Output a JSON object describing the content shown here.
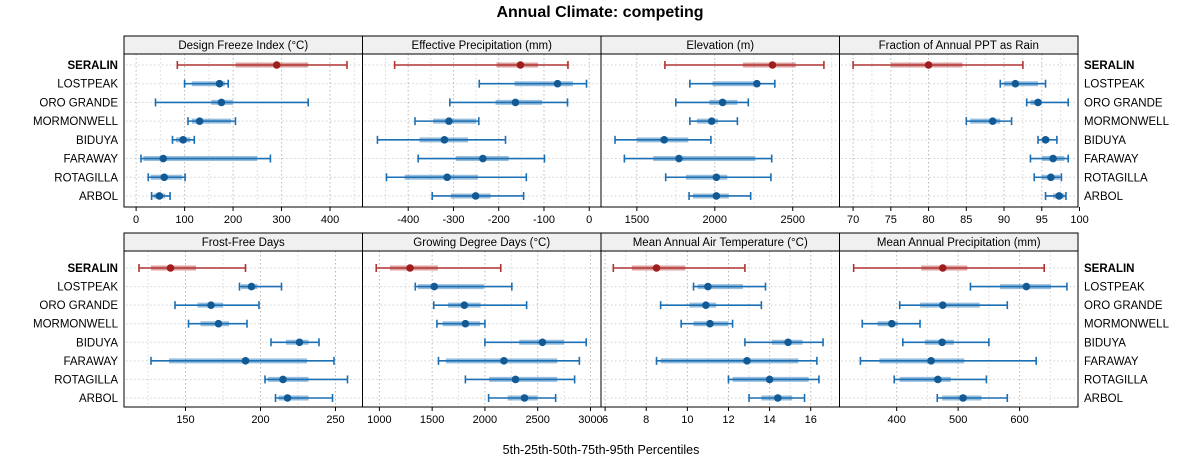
{
  "title": "Annual Climate: competing",
  "caption": "5th-25th-50th-75th-95th Percentiles",
  "highlight_site": "SERALIN",
  "sites": [
    "SERALIN",
    "LOSTPEAK",
    "ORO GRANDE",
    "MORMONWELL",
    "BIDUYA",
    "FARAWAY",
    "ROTAGILLA",
    "ARBOL"
  ],
  "colors": {
    "highlight": "#B23333",
    "highlight_point": "#A01D1D",
    "normal": "#1B6FB4",
    "normal_point": "#125A96",
    "strip_bg": "#F0F0F0",
    "grid_major": "#B9B9B9",
    "grid_minor": "#DADADA",
    "grid_row": "#CFCFCF",
    "border": "#000000"
  },
  "chart_data": [
    {
      "type": "dot-whisker",
      "title": "Design Freeze Index (°C)",
      "percentile_labels": [
        "5th",
        "25th",
        "50th",
        "75th",
        "95th"
      ],
      "xlim": [
        -25,
        467
      ],
      "ticks": [
        0,
        100,
        200,
        300,
        400
      ],
      "series": [
        {
          "name": "SERALIN",
          "values": [
            85,
            205,
            290,
            355,
            435
          ]
        },
        {
          "name": "LOSTPEAK",
          "values": [
            100,
            115,
            172,
            183,
            190
          ]
        },
        {
          "name": "ORO GRANDE",
          "values": [
            40,
            155,
            176,
            200,
            355
          ]
        },
        {
          "name": "MORMONWELL",
          "values": [
            107,
            115,
            131,
            196,
            205
          ]
        },
        {
          "name": "BIDUYA",
          "values": [
            75,
            82,
            97,
            112,
            120
          ]
        },
        {
          "name": "FARAWAY",
          "values": [
            10,
            15,
            56,
            250,
            277
          ]
        },
        {
          "name": "ROTAGILLA",
          "values": [
            25,
            30,
            58,
            95,
            101
          ]
        },
        {
          "name": "ARBOL",
          "values": [
            32,
            36,
            48,
            60,
            70
          ]
        }
      ]
    },
    {
      "type": "dot-whisker",
      "title": "Effective Precipitation (mm)",
      "percentile_labels": [
        "5th",
        "25th",
        "50th",
        "75th",
        "95th"
      ],
      "xlim": [
        -501,
        26
      ],
      "ticks": [
        -400,
        -300,
        -200,
        -100,
        0
      ],
      "series": [
        {
          "name": "SERALIN",
          "values": [
            -430,
            -205,
            -152,
            -113,
            -47
          ]
        },
        {
          "name": "LOSTPEAK",
          "values": [
            -243,
            -165,
            -70,
            -36,
            -6
          ]
        },
        {
          "name": "ORO GRANDE",
          "values": [
            -308,
            -207,
            -163,
            -104,
            -48
          ]
        },
        {
          "name": "MORMONWELL",
          "values": [
            -385,
            -345,
            -310,
            -250,
            -244
          ]
        },
        {
          "name": "BIDUYA",
          "values": [
            -468,
            -375,
            -320,
            -268,
            -185
          ]
        },
        {
          "name": "FARAWAY",
          "values": [
            -378,
            -295,
            -235,
            -178,
            -99
          ]
        },
        {
          "name": "ROTAGILLA",
          "values": [
            -448,
            -408,
            -314,
            -246,
            -139
          ]
        },
        {
          "name": "ARBOL",
          "values": [
            -347,
            -306,
            -251,
            -218,
            -145
          ]
        }
      ]
    },
    {
      "type": "dot-whisker",
      "title": "Elevation (m)",
      "percentile_labels": [
        "5th",
        "25th",
        "50th",
        "75th",
        "95th"
      ],
      "xlim": [
        1270,
        2800
      ],
      "ticks": [
        1500,
        2000,
        2500
      ],
      "series": [
        {
          "name": "SERALIN",
          "values": [
            1680,
            2180,
            2370,
            2520,
            2700
          ]
        },
        {
          "name": "LOSTPEAK",
          "values": [
            1840,
            1985,
            2270,
            2290,
            2385
          ]
        },
        {
          "name": "ORO GRANDE",
          "values": [
            1750,
            1965,
            2050,
            2145,
            2215
          ]
        },
        {
          "name": "MORMONWELL",
          "values": [
            1840,
            1885,
            1980,
            2020,
            2145
          ]
        },
        {
          "name": "BIDUYA",
          "values": [
            1360,
            1500,
            1675,
            1830,
            1975
          ]
        },
        {
          "name": "FARAWAY",
          "values": [
            1420,
            1605,
            1770,
            2260,
            2365
          ]
        },
        {
          "name": "ROTAGILLA",
          "values": [
            1685,
            1815,
            2010,
            2080,
            2360
          ]
        },
        {
          "name": "ARBOL",
          "values": [
            1835,
            1860,
            2010,
            2090,
            2230
          ]
        }
      ]
    },
    {
      "type": "dot-whisker",
      "title": "Fraction of Annual PPT as Rain",
      "percentile_labels": [
        "5th",
        "25th",
        "50th",
        "75th",
        "95th"
      ],
      "xlim": [
        68.2,
        99.8
      ],
      "ticks": [
        70,
        75,
        80,
        85,
        90,
        95,
        100
      ],
      "series": [
        {
          "name": "SERALIN",
          "values": [
            70,
            75,
            80,
            84.5,
            92.5
          ]
        },
        {
          "name": "LOSTPEAK",
          "values": [
            89.5,
            90,
            91.5,
            94.5,
            95.5
          ]
        },
        {
          "name": "ORO GRANDE",
          "values": [
            93,
            93.5,
            94.5,
            95,
            98.5
          ]
        },
        {
          "name": "MORMONWELL",
          "values": [
            85,
            85.5,
            88.5,
            89.5,
            91
          ]
        },
        {
          "name": "BIDUYA",
          "values": [
            94.5,
            95,
            95.5,
            96,
            97
          ]
        },
        {
          "name": "FARAWAY",
          "values": [
            93.5,
            95,
            96.5,
            98,
            98.5
          ]
        },
        {
          "name": "ROTAGILLA",
          "values": [
            94,
            95,
            96.2,
            97.4,
            97.6
          ]
        },
        {
          "name": "ARBOL",
          "values": [
            95.5,
            96.5,
            97.3,
            98,
            98.2
          ]
        }
      ]
    },
    {
      "type": "dot-whisker",
      "title": "Frost-Free Days",
      "percentile_labels": [
        "5th",
        "25th",
        "50th",
        "75th",
        "95th"
      ],
      "xlim": [
        109,
        268
      ],
      "ticks": [
        150,
        200,
        250
      ],
      "series": [
        {
          "name": "SERALIN",
          "values": [
            119,
            127,
            140,
            157,
            190
          ]
        },
        {
          "name": "LOSTPEAK",
          "values": [
            186,
            187,
            194,
            198,
            214
          ]
        },
        {
          "name": "ORO GRANDE",
          "values": [
            143,
            158,
            167,
            175,
            199
          ]
        },
        {
          "name": "MORMONWELL",
          "values": [
            152,
            160,
            172,
            179,
            191
          ]
        },
        {
          "name": "BIDUYA",
          "values": [
            207,
            217,
            226,
            232,
            239
          ]
        },
        {
          "name": "FARAWAY",
          "values": [
            127,
            139,
            190,
            231,
            249
          ]
        },
        {
          "name": "ROTAGILLA",
          "values": [
            203,
            205,
            215,
            232,
            258
          ]
        },
        {
          "name": "ARBOL",
          "values": [
            210,
            212,
            218,
            232,
            248
          ]
        }
      ]
    },
    {
      "type": "dot-whisker",
      "title": "Growing Degree Days (°C)",
      "percentile_labels": [
        "5th",
        "25th",
        "50th",
        "75th",
        "95th"
      ],
      "xlim": [
        840,
        3100
      ],
      "ticks": [
        1000,
        1500,
        2000,
        2500,
        3000
      ],
      "series": [
        {
          "name": "SERALIN",
          "values": [
            970,
            1100,
            1290,
            1555,
            2150
          ]
        },
        {
          "name": "LOSTPEAK",
          "values": [
            1340,
            1365,
            1520,
            1990,
            2255
          ]
        },
        {
          "name": "ORO GRANDE",
          "values": [
            1515,
            1650,
            1805,
            1960,
            2395
          ]
        },
        {
          "name": "MORMONWELL",
          "values": [
            1545,
            1600,
            1815,
            1955,
            2000
          ]
        },
        {
          "name": "BIDUYA",
          "values": [
            2000,
            2325,
            2545,
            2750,
            2960
          ]
        },
        {
          "name": "FARAWAY",
          "values": [
            1560,
            1630,
            2180,
            2685,
            2895
          ]
        },
        {
          "name": "ROTAGILLA",
          "values": [
            1815,
            2040,
            2290,
            2685,
            2850
          ]
        },
        {
          "name": "ARBOL",
          "values": [
            2035,
            2215,
            2375,
            2495,
            2670
          ]
        }
      ]
    },
    {
      "type": "dot-whisker",
      "title": "Mean Annual Air Temperature (°C)",
      "percentile_labels": [
        "5th",
        "25th",
        "50th",
        "75th",
        "95th"
      ],
      "xlim": [
        5.8,
        17.4
      ],
      "ticks": [
        6,
        8,
        10,
        12,
        14,
        16
      ],
      "series": [
        {
          "name": "SERALIN",
          "values": [
            6.4,
            7.3,
            8.5,
            9.9,
            12.8
          ]
        },
        {
          "name": "LOSTPEAK",
          "values": [
            10.3,
            10.5,
            11.0,
            12.7,
            13.8
          ]
        },
        {
          "name": "ORO GRANDE",
          "values": [
            8.7,
            10.1,
            10.9,
            11.4,
            13.6
          ]
        },
        {
          "name": "MORMONWELL",
          "values": [
            9.7,
            10.3,
            11.1,
            12.0,
            12.2
          ]
        },
        {
          "name": "BIDUYA",
          "values": [
            12.8,
            14.1,
            14.9,
            15.6,
            16.6
          ]
        },
        {
          "name": "FARAWAY",
          "values": [
            8.5,
            8.7,
            12.9,
            15.4,
            16.3
          ]
        },
        {
          "name": "ROTAGILLA",
          "values": [
            12.0,
            12.2,
            14.0,
            15.9,
            16.4
          ]
        },
        {
          "name": "ARBOL",
          "values": [
            13.0,
            13.6,
            14.4,
            15.1,
            15.7
          ]
        }
      ]
    },
    {
      "type": "dot-whisker",
      "title": "Mean Annual Precipitation (mm)",
      "percentile_labels": [
        "5th",
        "25th",
        "50th",
        "75th",
        "95th"
      ],
      "xlim": [
        307,
        695
      ],
      "ticks": [
        400,
        500,
        600
      ],
      "series": [
        {
          "name": "SERALIN",
          "values": [
            330,
            440,
            475,
            515,
            640
          ]
        },
        {
          "name": "LOSTPEAK",
          "values": [
            520,
            568,
            611,
            651,
            677
          ]
        },
        {
          "name": "ORO GRANDE",
          "values": [
            405,
            438,
            475,
            535,
            580
          ]
        },
        {
          "name": "MORMONWELL",
          "values": [
            344,
            369,
            392,
            402,
            438
          ]
        },
        {
          "name": "BIDUYA",
          "values": [
            410,
            446,
            474,
            493,
            550
          ]
        },
        {
          "name": "FARAWAY",
          "values": [
            341,
            372,
            456,
            510,
            627
          ]
        },
        {
          "name": "ROTAGILLA",
          "values": [
            396,
            405,
            467,
            488,
            546
          ]
        },
        {
          "name": "ARBOL",
          "values": [
            466,
            474,
            508,
            538,
            580
          ]
        }
      ]
    }
  ]
}
